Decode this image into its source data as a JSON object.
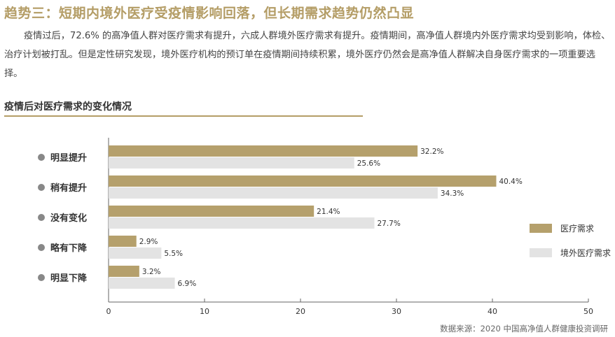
{
  "title": "趋势三：短期内境外医疗受疫情影响回落，但长期需求趋势仍然凸显",
  "paragraph": "疫情过后，72.6% 的高净值人群对医疗需求有提升，六成人群境外医疗需求有提升。疫情期间，高净值人群境内外医疗需求均受到影响，体检、治疗计划被打乱。但是定性研究发现，境外医疗机构的预订单在疫情期间持续积累，境外医疗仍然会是高净值人群解决自身医疗需求的一项重要选择。",
  "chart_title": "疫情后对医疗需求的变化情况",
  "source": "数据来源：2020 中国高净值人群健康投资调研",
  "colors": {
    "series1": "#b5a06c",
    "series2": "#e3e3e3",
    "accent": "#b49d66"
  },
  "chart_data": {
    "type": "bar",
    "orientation": "horizontal",
    "title": "疫情后对医疗需求的变化情况",
    "categories": [
      "明显提升",
      "稍有提升",
      "没有变化",
      "略有下降",
      "明显下降"
    ],
    "series": [
      {
        "name": "医疗需求",
        "values": [
          32.2,
          40.4,
          21.4,
          2.9,
          3.2
        ],
        "labels": [
          "32.2%",
          "40.4%",
          "21.4%",
          "2.9%",
          "3.2%"
        ]
      },
      {
        "name": "境外医疗需求",
        "values": [
          25.6,
          34.3,
          27.7,
          5.5,
          6.9
        ],
        "labels": [
          "25.6%",
          "34.3%",
          "27.7%",
          "5.5%",
          "6.9%"
        ]
      }
    ],
    "xlim": [
      0,
      50
    ],
    "xticks": [
      "0",
      "10",
      "20",
      "30",
      "40",
      "50"
    ],
    "legend": "right",
    "grid": false
  }
}
